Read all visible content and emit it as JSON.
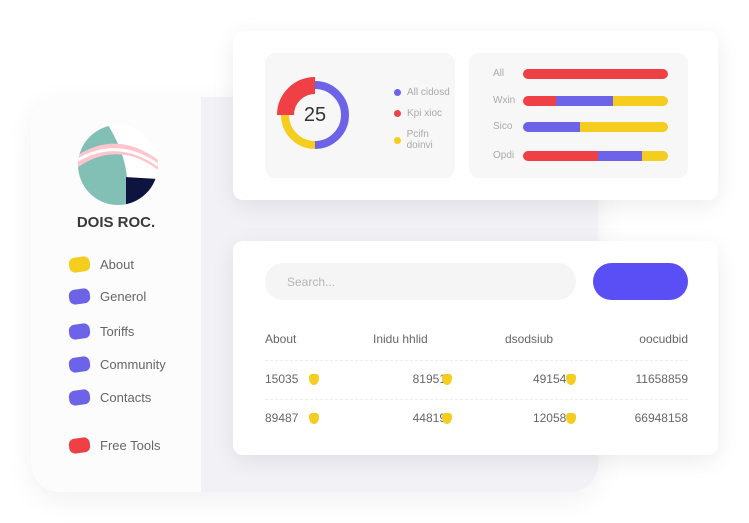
{
  "sidebar": {
    "brand": "DOIS ROC.",
    "items": [
      {
        "label": "About",
        "color": "#f5cd1f"
      },
      {
        "label": "Generol",
        "color": "#6c63e8"
      },
      {
        "label": "Toriffs",
        "color": "#6c63e8"
      },
      {
        "label": "Community",
        "color": "#6c63e8"
      },
      {
        "label": "Contacts",
        "color": "#6c63e8"
      },
      {
        "label": "Free Tools",
        "color": "#ef4045"
      }
    ]
  },
  "donut": {
    "value": "25",
    "legend": [
      {
        "label": "All cidosd",
        "color": "#6c63e8"
      },
      {
        "label": "Kpi xioc",
        "color": "#ef4045"
      },
      {
        "label": "Pcifn doinvi",
        "color": "#f5cd1f"
      }
    ],
    "segments": [
      {
        "color": "#6c63e8",
        "fraction": 0.5
      },
      {
        "color": "#f5cd1f",
        "fraction": 0.25
      },
      {
        "color": "#ef4045",
        "fraction": 0.25
      }
    ]
  },
  "bars": [
    {
      "label": "All",
      "segments": [
        {
          "color": "#ef4045",
          "fraction": 1
        }
      ]
    },
    {
      "label": "Wxin",
      "segments": [
        {
          "color": "#ef4045",
          "fraction": 0.23
        },
        {
          "color": "#6c63e8",
          "fraction": 0.39
        },
        {
          "color": "#f5cd1f",
          "fraction": 0.38
        }
      ]
    },
    {
      "label": "Sico",
      "segments": [
        {
          "color": "#6c63e8",
          "fraction": 0.39
        },
        {
          "color": "#f5cd1f",
          "fraction": 0.61
        }
      ]
    },
    {
      "label": "Opdi",
      "segments": [
        {
          "color": "#ef4045",
          "fraction": 0.52
        },
        {
          "color": "#6c63e8",
          "fraction": 0.3
        },
        {
          "color": "#f5cd1f",
          "fraction": 0.18
        }
      ]
    }
  ],
  "search": {
    "placeholder": "Search..."
  },
  "table": {
    "headers": [
      "About",
      "Inidu hhlid",
      "dsodsiub",
      "oocudbid"
    ],
    "rows": [
      [
        "15035",
        "81951",
        "491547",
        "11658859"
      ],
      [
        "89487",
        "44819",
        "120587",
        "66948158"
      ]
    ]
  }
}
